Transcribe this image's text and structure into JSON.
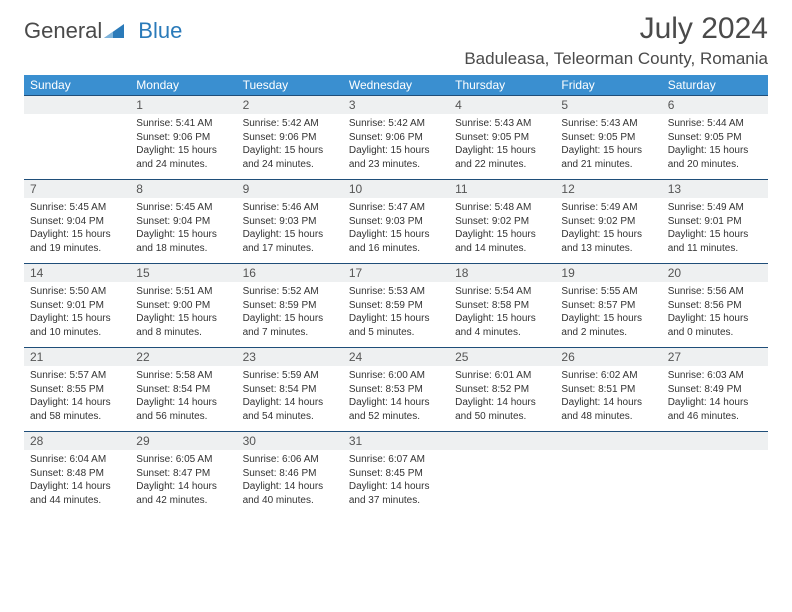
{
  "logo": {
    "word1": "General",
    "word2": "Blue"
  },
  "title": "July 2024",
  "location": "Baduleasa, Teleorman County, Romania",
  "colors": {
    "header_bg": "#3a8fd0",
    "header_text": "#ffffff",
    "daynum_bg": "#eef0f1",
    "rule": "#1f4e79",
    "logo_blue": "#2a7ab9",
    "text": "#333333"
  },
  "calendar": {
    "dow": [
      "Sunday",
      "Monday",
      "Tuesday",
      "Wednesday",
      "Thursday",
      "Friday",
      "Saturday"
    ],
    "weeks": [
      {
        "nums": [
          "",
          "1",
          "2",
          "3",
          "4",
          "5",
          "6"
        ],
        "cells": [
          null,
          {
            "sunrise": "5:41 AM",
            "sunset": "9:06 PM",
            "daylight": "15 hours and 24 minutes."
          },
          {
            "sunrise": "5:42 AM",
            "sunset": "9:06 PM",
            "daylight": "15 hours and 24 minutes."
          },
          {
            "sunrise": "5:42 AM",
            "sunset": "9:06 PM",
            "daylight": "15 hours and 23 minutes."
          },
          {
            "sunrise": "5:43 AM",
            "sunset": "9:05 PM",
            "daylight": "15 hours and 22 minutes."
          },
          {
            "sunrise": "5:43 AM",
            "sunset": "9:05 PM",
            "daylight": "15 hours and 21 minutes."
          },
          {
            "sunrise": "5:44 AM",
            "sunset": "9:05 PM",
            "daylight": "15 hours and 20 minutes."
          }
        ]
      },
      {
        "nums": [
          "7",
          "8",
          "9",
          "10",
          "11",
          "12",
          "13"
        ],
        "cells": [
          {
            "sunrise": "5:45 AM",
            "sunset": "9:04 PM",
            "daylight": "15 hours and 19 minutes."
          },
          {
            "sunrise": "5:45 AM",
            "sunset": "9:04 PM",
            "daylight": "15 hours and 18 minutes."
          },
          {
            "sunrise": "5:46 AM",
            "sunset": "9:03 PM",
            "daylight": "15 hours and 17 minutes."
          },
          {
            "sunrise": "5:47 AM",
            "sunset": "9:03 PM",
            "daylight": "15 hours and 16 minutes."
          },
          {
            "sunrise": "5:48 AM",
            "sunset": "9:02 PM",
            "daylight": "15 hours and 14 minutes."
          },
          {
            "sunrise": "5:49 AM",
            "sunset": "9:02 PM",
            "daylight": "15 hours and 13 minutes."
          },
          {
            "sunrise": "5:49 AM",
            "sunset": "9:01 PM",
            "daylight": "15 hours and 11 minutes."
          }
        ]
      },
      {
        "nums": [
          "14",
          "15",
          "16",
          "17",
          "18",
          "19",
          "20"
        ],
        "cells": [
          {
            "sunrise": "5:50 AM",
            "sunset": "9:01 PM",
            "daylight": "15 hours and 10 minutes."
          },
          {
            "sunrise": "5:51 AM",
            "sunset": "9:00 PM",
            "daylight": "15 hours and 8 minutes."
          },
          {
            "sunrise": "5:52 AM",
            "sunset": "8:59 PM",
            "daylight": "15 hours and 7 minutes."
          },
          {
            "sunrise": "5:53 AM",
            "sunset": "8:59 PM",
            "daylight": "15 hours and 5 minutes."
          },
          {
            "sunrise": "5:54 AM",
            "sunset": "8:58 PM",
            "daylight": "15 hours and 4 minutes."
          },
          {
            "sunrise": "5:55 AM",
            "sunset": "8:57 PM",
            "daylight": "15 hours and 2 minutes."
          },
          {
            "sunrise": "5:56 AM",
            "sunset": "8:56 PM",
            "daylight": "15 hours and 0 minutes."
          }
        ]
      },
      {
        "nums": [
          "21",
          "22",
          "23",
          "24",
          "25",
          "26",
          "27"
        ],
        "cells": [
          {
            "sunrise": "5:57 AM",
            "sunset": "8:55 PM",
            "daylight": "14 hours and 58 minutes."
          },
          {
            "sunrise": "5:58 AM",
            "sunset": "8:54 PM",
            "daylight": "14 hours and 56 minutes."
          },
          {
            "sunrise": "5:59 AM",
            "sunset": "8:54 PM",
            "daylight": "14 hours and 54 minutes."
          },
          {
            "sunrise": "6:00 AM",
            "sunset": "8:53 PM",
            "daylight": "14 hours and 52 minutes."
          },
          {
            "sunrise": "6:01 AM",
            "sunset": "8:52 PM",
            "daylight": "14 hours and 50 minutes."
          },
          {
            "sunrise": "6:02 AM",
            "sunset": "8:51 PM",
            "daylight": "14 hours and 48 minutes."
          },
          {
            "sunrise": "6:03 AM",
            "sunset": "8:49 PM",
            "daylight": "14 hours and 46 minutes."
          }
        ]
      },
      {
        "nums": [
          "28",
          "29",
          "30",
          "31",
          "",
          "",
          ""
        ],
        "cells": [
          {
            "sunrise": "6:04 AM",
            "sunset": "8:48 PM",
            "daylight": "14 hours and 44 minutes."
          },
          {
            "sunrise": "6:05 AM",
            "sunset": "8:47 PM",
            "daylight": "14 hours and 42 minutes."
          },
          {
            "sunrise": "6:06 AM",
            "sunset": "8:46 PM",
            "daylight": "14 hours and 40 minutes."
          },
          {
            "sunrise": "6:07 AM",
            "sunset": "8:45 PM",
            "daylight": "14 hours and 37 minutes."
          },
          null,
          null,
          null
        ]
      }
    ]
  },
  "labels": {
    "sunrise": "Sunrise:",
    "sunset": "Sunset:",
    "daylight": "Daylight:"
  }
}
